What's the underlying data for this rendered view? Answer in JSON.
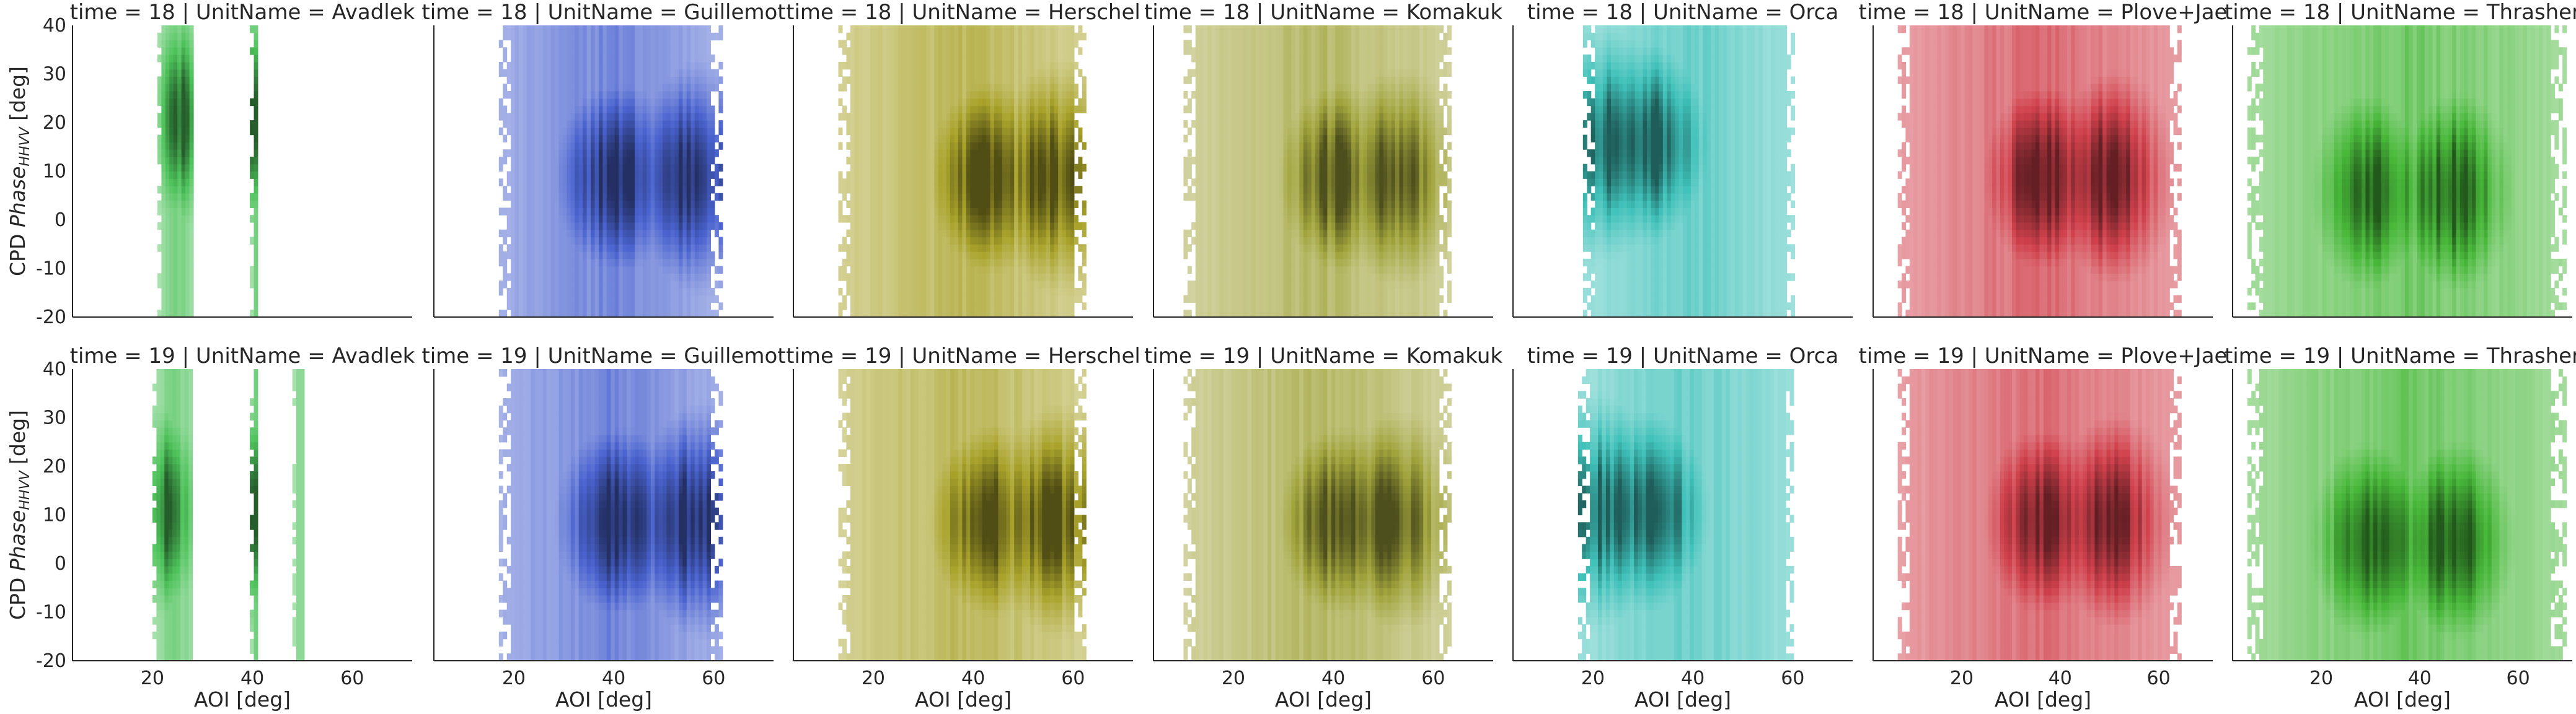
{
  "chart_data": {
    "type": "heatmap",
    "facet_title_template": "{row_var} = {row} | {col_var} = {col}",
    "row_var": "time",
    "col_var": "UnitName",
    "rows": [
      18,
      19
    ],
    "columns": [
      {
        "name": "Avadlek",
        "color": "#4dc25a"
      },
      {
        "name": "Guillemot",
        "color": "#4a63cf"
      },
      {
        "name": "Herschel",
        "color": "#a9a32b"
      },
      {
        "name": "Komakuk",
        "color": "#a1a43c"
      },
      {
        "name": "Orca",
        "color": "#3fc1b9"
      },
      {
        "name": "Plove+Jae",
        "color": "#d0414c"
      },
      {
        "name": "Thrasher",
        "color": "#48b83a"
      }
    ],
    "xlabel": "AOI [deg]",
    "ylabel_main": "CPD ",
    "ylabel_italic": "Phase",
    "ylabel_sub": "HHVV",
    "ylabel_unit": " [deg]",
    "ylim": [
      -20,
      40
    ],
    "yticks": [
      -20,
      -10,
      0,
      10,
      20,
      30,
      40
    ],
    "xlims": {
      "Avadlek": [
        4,
        72
      ],
      "Guillemot": [
        4,
        72
      ],
      "Herschel": [
        4,
        72
      ],
      "Komakuk": [
        4,
        72
      ],
      "Orca": [
        4,
        72
      ],
      "Plove+Jae": [
        2,
        71
      ],
      "Thrasher": [
        2,
        71
      ]
    },
    "xticks": [
      20,
      40,
      60
    ],
    "grid": false,
    "density_ranges": {
      "18": {
        "Avadlek": {
          "bands": [
            [
              21,
              28
            ],
            [
              39.5,
              41
            ]
          ],
          "peak_aoi": [
            25,
            40
          ],
          "peak_phase": 20
        },
        "Guillemot": {
          "bands": [
            [
              17,
              61
            ]
          ],
          "peak_aoi": [
            40,
            55
          ],
          "peak_phase": 8
        },
        "Herschel": {
          "bands": [
            [
              13,
              62
            ]
          ],
          "peak_aoi": [
            42,
            55
          ],
          "peak_phase": 8
        },
        "Komakuk": {
          "bands": [
            [
              10,
              63
            ]
          ],
          "peak_aoi": [
            40,
            51
          ],
          "peak_phase": 8
        },
        "Orca": {
          "bands": [
            [
              18,
              60
            ]
          ],
          "peak_aoi": [
            24,
            32
          ],
          "peak_phase": 15
        },
        "Plove+Jae": {
          "bands": [
            [
              7,
              64
            ]
          ],
          "peak_aoi": [
            36,
            49
          ],
          "peak_phase": 8
        },
        "Thrasher": {
          "bands": [
            [
              5,
              69
            ]
          ],
          "peak_aoi": [
            30,
            46
          ],
          "peak_phase": 5
        }
      },
      "19": {
        "Avadlek": {
          "bands": [
            [
              20,
              28
            ],
            [
              39.5,
              41
            ],
            [
              48,
              50
            ]
          ],
          "peak_aoi": [
            23,
            40
          ],
          "peak_phase": 10
        },
        "Guillemot": {
          "bands": [
            [
              17,
              61
            ]
          ],
          "peak_aoi": [
            40,
            55
          ],
          "peak_phase": 8
        },
        "Herschel": {
          "bands": [
            [
              13,
              62
            ]
          ],
          "peak_aoi": [
            42,
            55
          ],
          "peak_phase": 8
        },
        "Komakuk": {
          "bands": [
            [
              10,
              63
            ]
          ],
          "peak_aoi": [
            40,
            51
          ],
          "peak_phase": 8
        },
        "Orca": {
          "bands": [
            [
              17,
              60
            ]
          ],
          "peak_aoi": [
            22,
            32
          ],
          "peak_phase": 10
        },
        "Plove+Jae": {
          "bands": [
            [
              7,
              64
            ]
          ],
          "peak_aoi": [
            36,
            49
          ],
          "peak_phase": 8
        },
        "Thrasher": {
          "bands": [
            [
              5,
              69
            ]
          ],
          "peak_aoi": [
            30,
            46
          ],
          "peak_phase": 4
        }
      }
    }
  }
}
